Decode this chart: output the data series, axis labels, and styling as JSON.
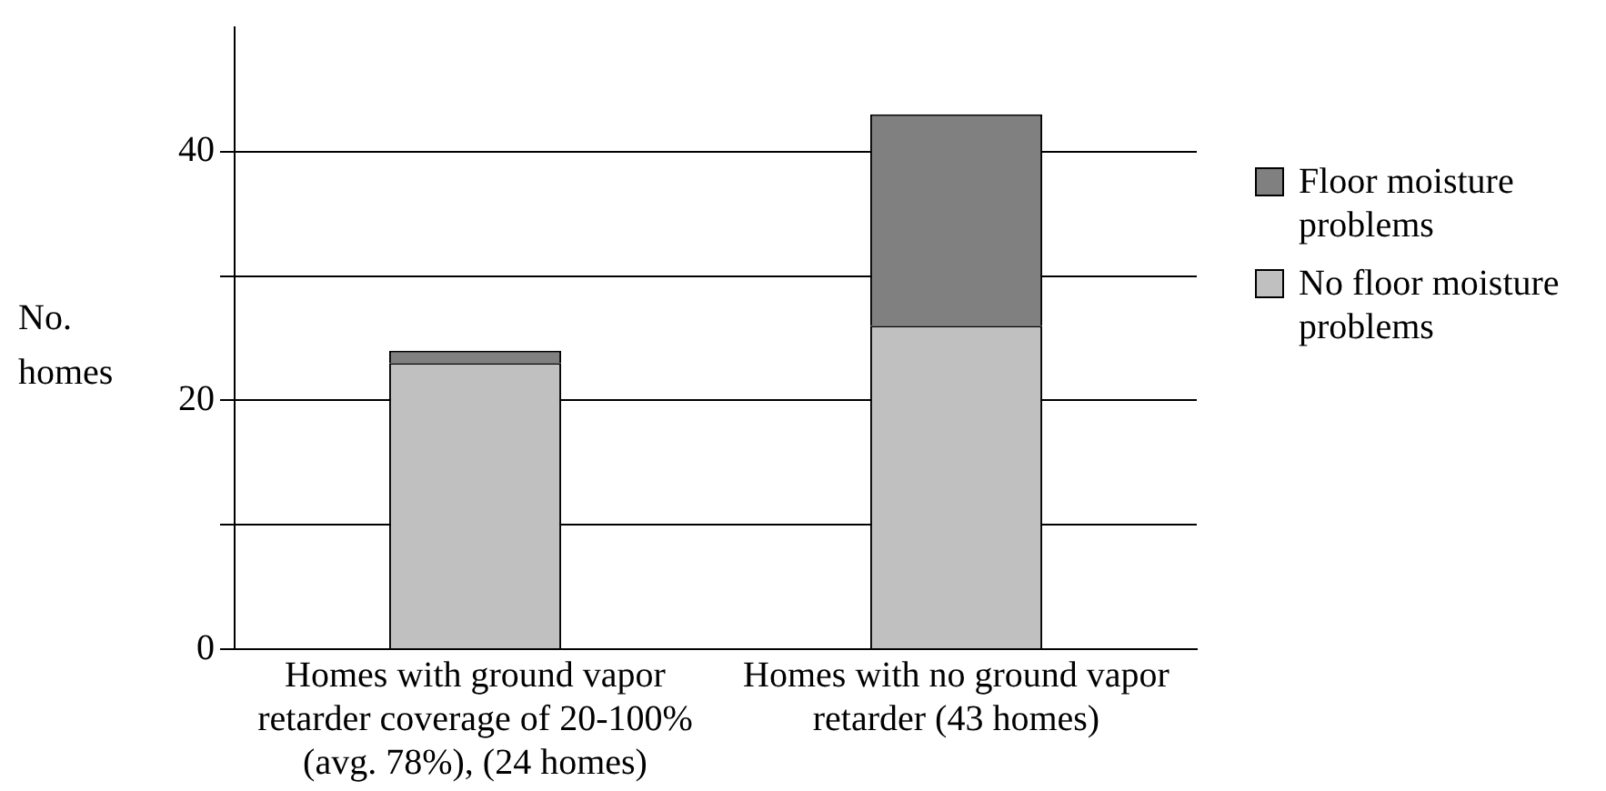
{
  "chart_data": {
    "type": "bar",
    "stacked": true,
    "categories": [
      "Homes with ground vapor retarder coverage of 20-100% (avg. 78%), (24 homes)",
      "Homes with no ground vapor retarder (43 homes)"
    ],
    "series": [
      {
        "name": "No floor moisture problems",
        "color": "#c0c0c0",
        "values": [
          23,
          26
        ]
      },
      {
        "name": "Floor moisture problems",
        "color": "#808080",
        "values": [
          1,
          17
        ]
      }
    ],
    "ylabel": "No. homes",
    "ylim": [
      0,
      50
    ],
    "yticks": [
      0,
      {
        "value": 10,
        "label": null
      },
      20,
      {
        "value": 30,
        "label": null
      },
      40
    ],
    "grid": "y",
    "legend": "right"
  }
}
